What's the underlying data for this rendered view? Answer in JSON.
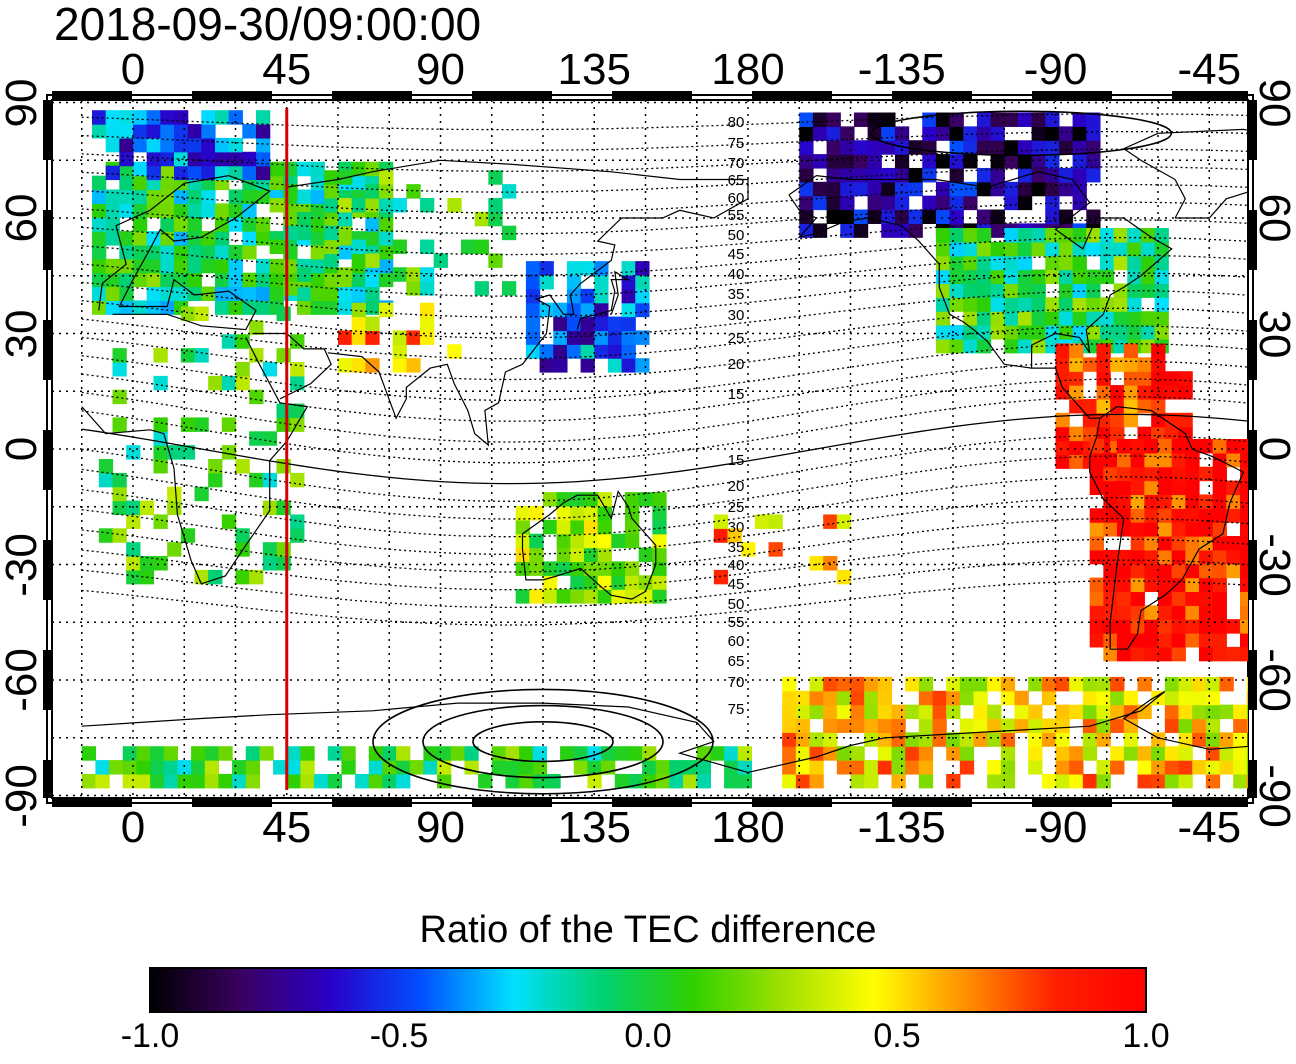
{
  "timestamp": "2018-09-30/09:00:00",
  "map": {
    "lon_ticks": [
      "0",
      "45",
      "90",
      "135",
      "180",
      "-135",
      "-90",
      "-45"
    ],
    "lat_ticks": [
      "90",
      "60",
      "30",
      "0",
      "-30",
      "-60",
      "-90"
    ],
    "marker_longitude": 45,
    "marker_color": "#d40000",
    "magnetic_latitude_labels_north": [
      "80",
      "75",
      "70",
      "65",
      "60",
      "55",
      "50",
      "45",
      "40",
      "35",
      "30",
      "25",
      "20",
      "15"
    ],
    "magnetic_latitude_labels_south": [
      "15",
      "20",
      "25",
      "30",
      "35",
      "40",
      "45",
      "50",
      "55",
      "60",
      "65",
      "70",
      "75"
    ]
  },
  "colorbar": {
    "title": "Ratio of the TEC difference",
    "ticks": [
      "-1.0",
      "-0.5",
      "0.0",
      "0.5",
      "1.0"
    ],
    "colormap": [
      "#000000",
      "#3a0060",
      "#2a00c8",
      "#0050ff",
      "#00e0ff",
      "#00d070",
      "#30d000",
      "#a0e000",
      "#ffff00",
      "#ff9000",
      "#ff2000",
      "#ff0000"
    ]
  }
}
